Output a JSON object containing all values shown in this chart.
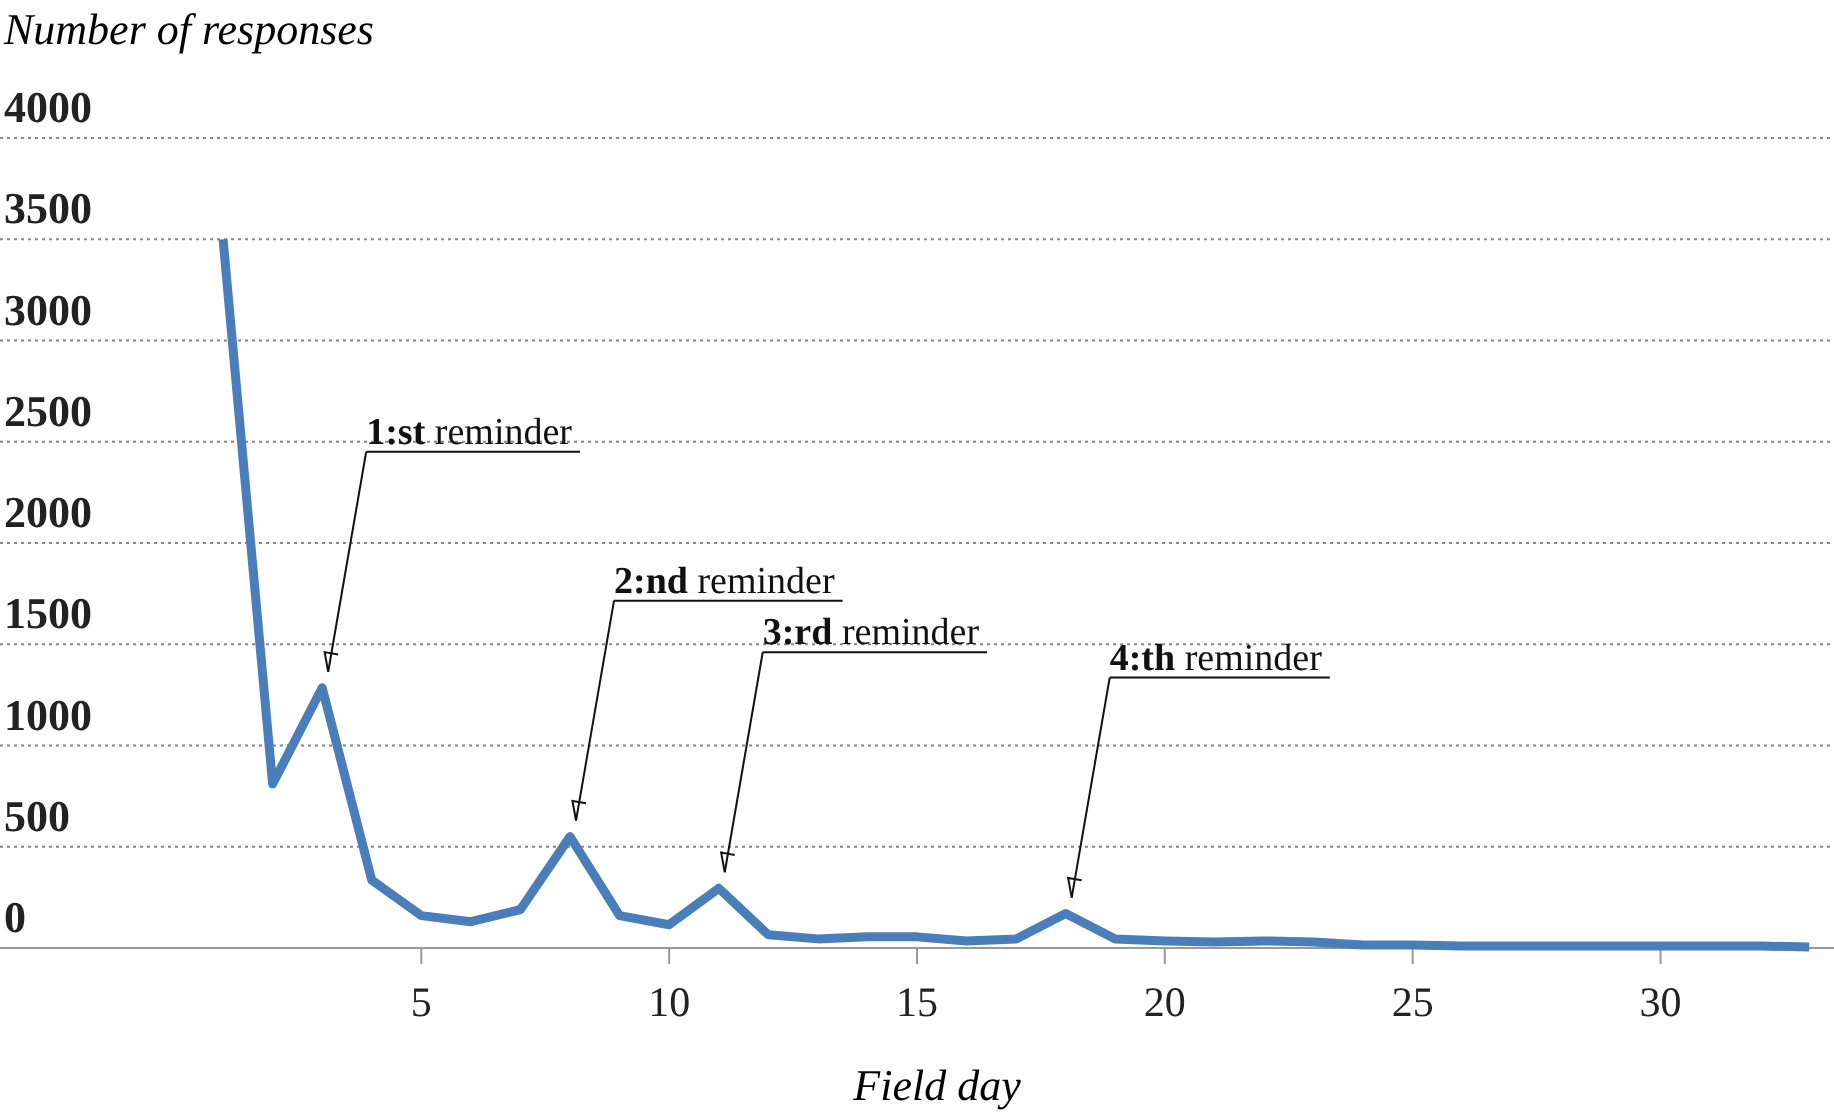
{
  "chart_data": {
    "type": "line",
    "ylabel": "Number of responses",
    "xlabel": "Field day",
    "x": [
      1,
      2,
      3,
      4,
      5,
      6,
      7,
      8,
      9,
      10,
      11,
      12,
      13,
      14,
      15,
      16,
      17,
      18,
      19,
      20,
      21,
      22,
      23,
      24,
      25,
      26,
      27,
      28,
      29,
      30,
      31,
      32,
      33
    ],
    "series": [
      {
        "color": "#4a7ebb",
        "values": [
          3500,
          810,
          1285,
          335,
          160,
          130,
          190,
          550,
          160,
          115,
          295,
          65,
          45,
          55,
          55,
          35,
          45,
          170,
          45,
          35,
          30,
          35,
          30,
          15,
          15,
          10,
          10,
          10,
          10,
          10,
          10,
          10,
          5
        ]
      }
    ],
    "xlim": [
      -3.5,
      33.5
    ],
    "xticks": [
      5,
      10,
      15,
      20,
      25,
      30
    ],
    "ylim": [
      0,
      4000
    ],
    "yticks": [
      0,
      500,
      1000,
      1500,
      2000,
      2500,
      3000,
      3500,
      4000
    ],
    "grid": "y",
    "marker": "none",
    "line_style": "solid",
    "annotations": [
      {
        "text": "1:st reminder",
        "x": 3,
        "y": 1285
      },
      {
        "text": "2:nd reminder",
        "x": 8,
        "y": 550
      },
      {
        "text": "3:rd reminder",
        "x": 11,
        "y": 295
      },
      {
        "text": "4:th reminder",
        "x": 18,
        "y": 170
      }
    ]
  }
}
